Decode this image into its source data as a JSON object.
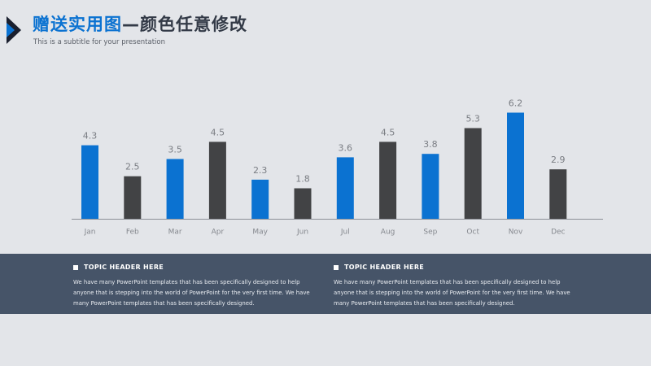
{
  "slide": {
    "title_blue": "赠送实用图",
    "title_dark": "—颜色任意修改",
    "subtitle": "This is a subtitle for your presentation"
  },
  "colors": {
    "background": "#e3e5e9",
    "accent_blue": "#0b72d1",
    "dark_bar": "#424345",
    "band": "#465468"
  },
  "chart_data": {
    "type": "bar",
    "categories": [
      "Jan",
      "Feb",
      "Mar",
      "Apr",
      "May",
      "Jun",
      "Jul",
      "Aug",
      "Sep",
      "Oct",
      "Nov",
      "Dec"
    ],
    "values": [
      4.3,
      2.5,
      3.5,
      4.5,
      2.3,
      1.8,
      3.6,
      4.5,
      3.8,
      5.3,
      6.2,
      2.9
    ],
    "bar_colors": [
      "#0b72d1",
      "#424345",
      "#0b72d1",
      "#424345",
      "#0b72d1",
      "#424345",
      "#0b72d1",
      "#424345",
      "#0b72d1",
      "#424345",
      "#0b72d1",
      "#424345"
    ],
    "data_labels": true,
    "ylim": [
      0,
      6.2
    ],
    "grid": false,
    "legend": "none"
  },
  "topics": [
    {
      "header": "TOPIC HEADER HERE",
      "body": "We have many PowerPoint templates that has been specifically designed to help anyone that is stepping into the world of PowerPoint for the very first time. We have many PowerPoint templates that has been specifically designed."
    },
    {
      "header": "TOPIC HEADER HERE",
      "body": "We have many PowerPoint templates that has been specifically designed to help anyone that is stepping into the world of PowerPoint for the very first time. We have many PowerPoint templates that has been specifically designed."
    }
  ]
}
